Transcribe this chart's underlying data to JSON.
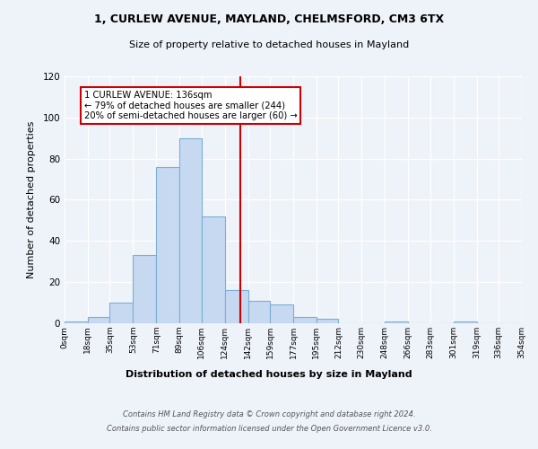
{
  "title_line1": "1, CURLEW AVENUE, MAYLAND, CHELMSFORD, CM3 6TX",
  "title_line2": "Size of property relative to detached houses in Mayland",
  "xlabel": "Distribution of detached houses by size in Mayland",
  "ylabel": "Number of detached properties",
  "bin_edges": [
    0,
    18,
    35,
    53,
    71,
    89,
    106,
    124,
    142,
    159,
    177,
    195,
    212,
    230,
    248,
    266,
    283,
    301,
    319,
    336,
    354
  ],
  "bin_counts": [
    1,
    3,
    10,
    33,
    76,
    90,
    52,
    16,
    11,
    9,
    3,
    2,
    0,
    0,
    1,
    0,
    0,
    1,
    0,
    0
  ],
  "bar_color": "#c6d9f1",
  "bar_edge_color": "#7bafd4",
  "property_value": 136,
  "vline_color": "#cc0000",
  "annotation_line1": "1 CURLEW AVENUE: 136sqm",
  "annotation_line2": "← 79% of detached houses are smaller (244)",
  "annotation_line3": "20% of semi-detached houses are larger (60) →",
  "annotation_box_color": "#ffffff",
  "annotation_box_edge_color": "#cc0000",
  "ylim": [
    0,
    120
  ],
  "yticks": [
    0,
    20,
    40,
    60,
    80,
    100,
    120
  ],
  "tick_labels": [
    "0sqm",
    "18sqm",
    "35sqm",
    "53sqm",
    "71sqm",
    "89sqm",
    "106sqm",
    "124sqm",
    "142sqm",
    "159sqm",
    "177sqm",
    "195sqm",
    "212sqm",
    "230sqm",
    "248sqm",
    "266sqm",
    "283sqm",
    "301sqm",
    "319sqm",
    "336sqm",
    "354sqm"
  ],
  "footer_line1": "Contains HM Land Registry data © Crown copyright and database right 2024.",
  "footer_line2": "Contains public sector information licensed under the Open Government Licence v3.0.",
  "bg_color": "#eef2f9",
  "plot_bg_color": "#eef2f9"
}
